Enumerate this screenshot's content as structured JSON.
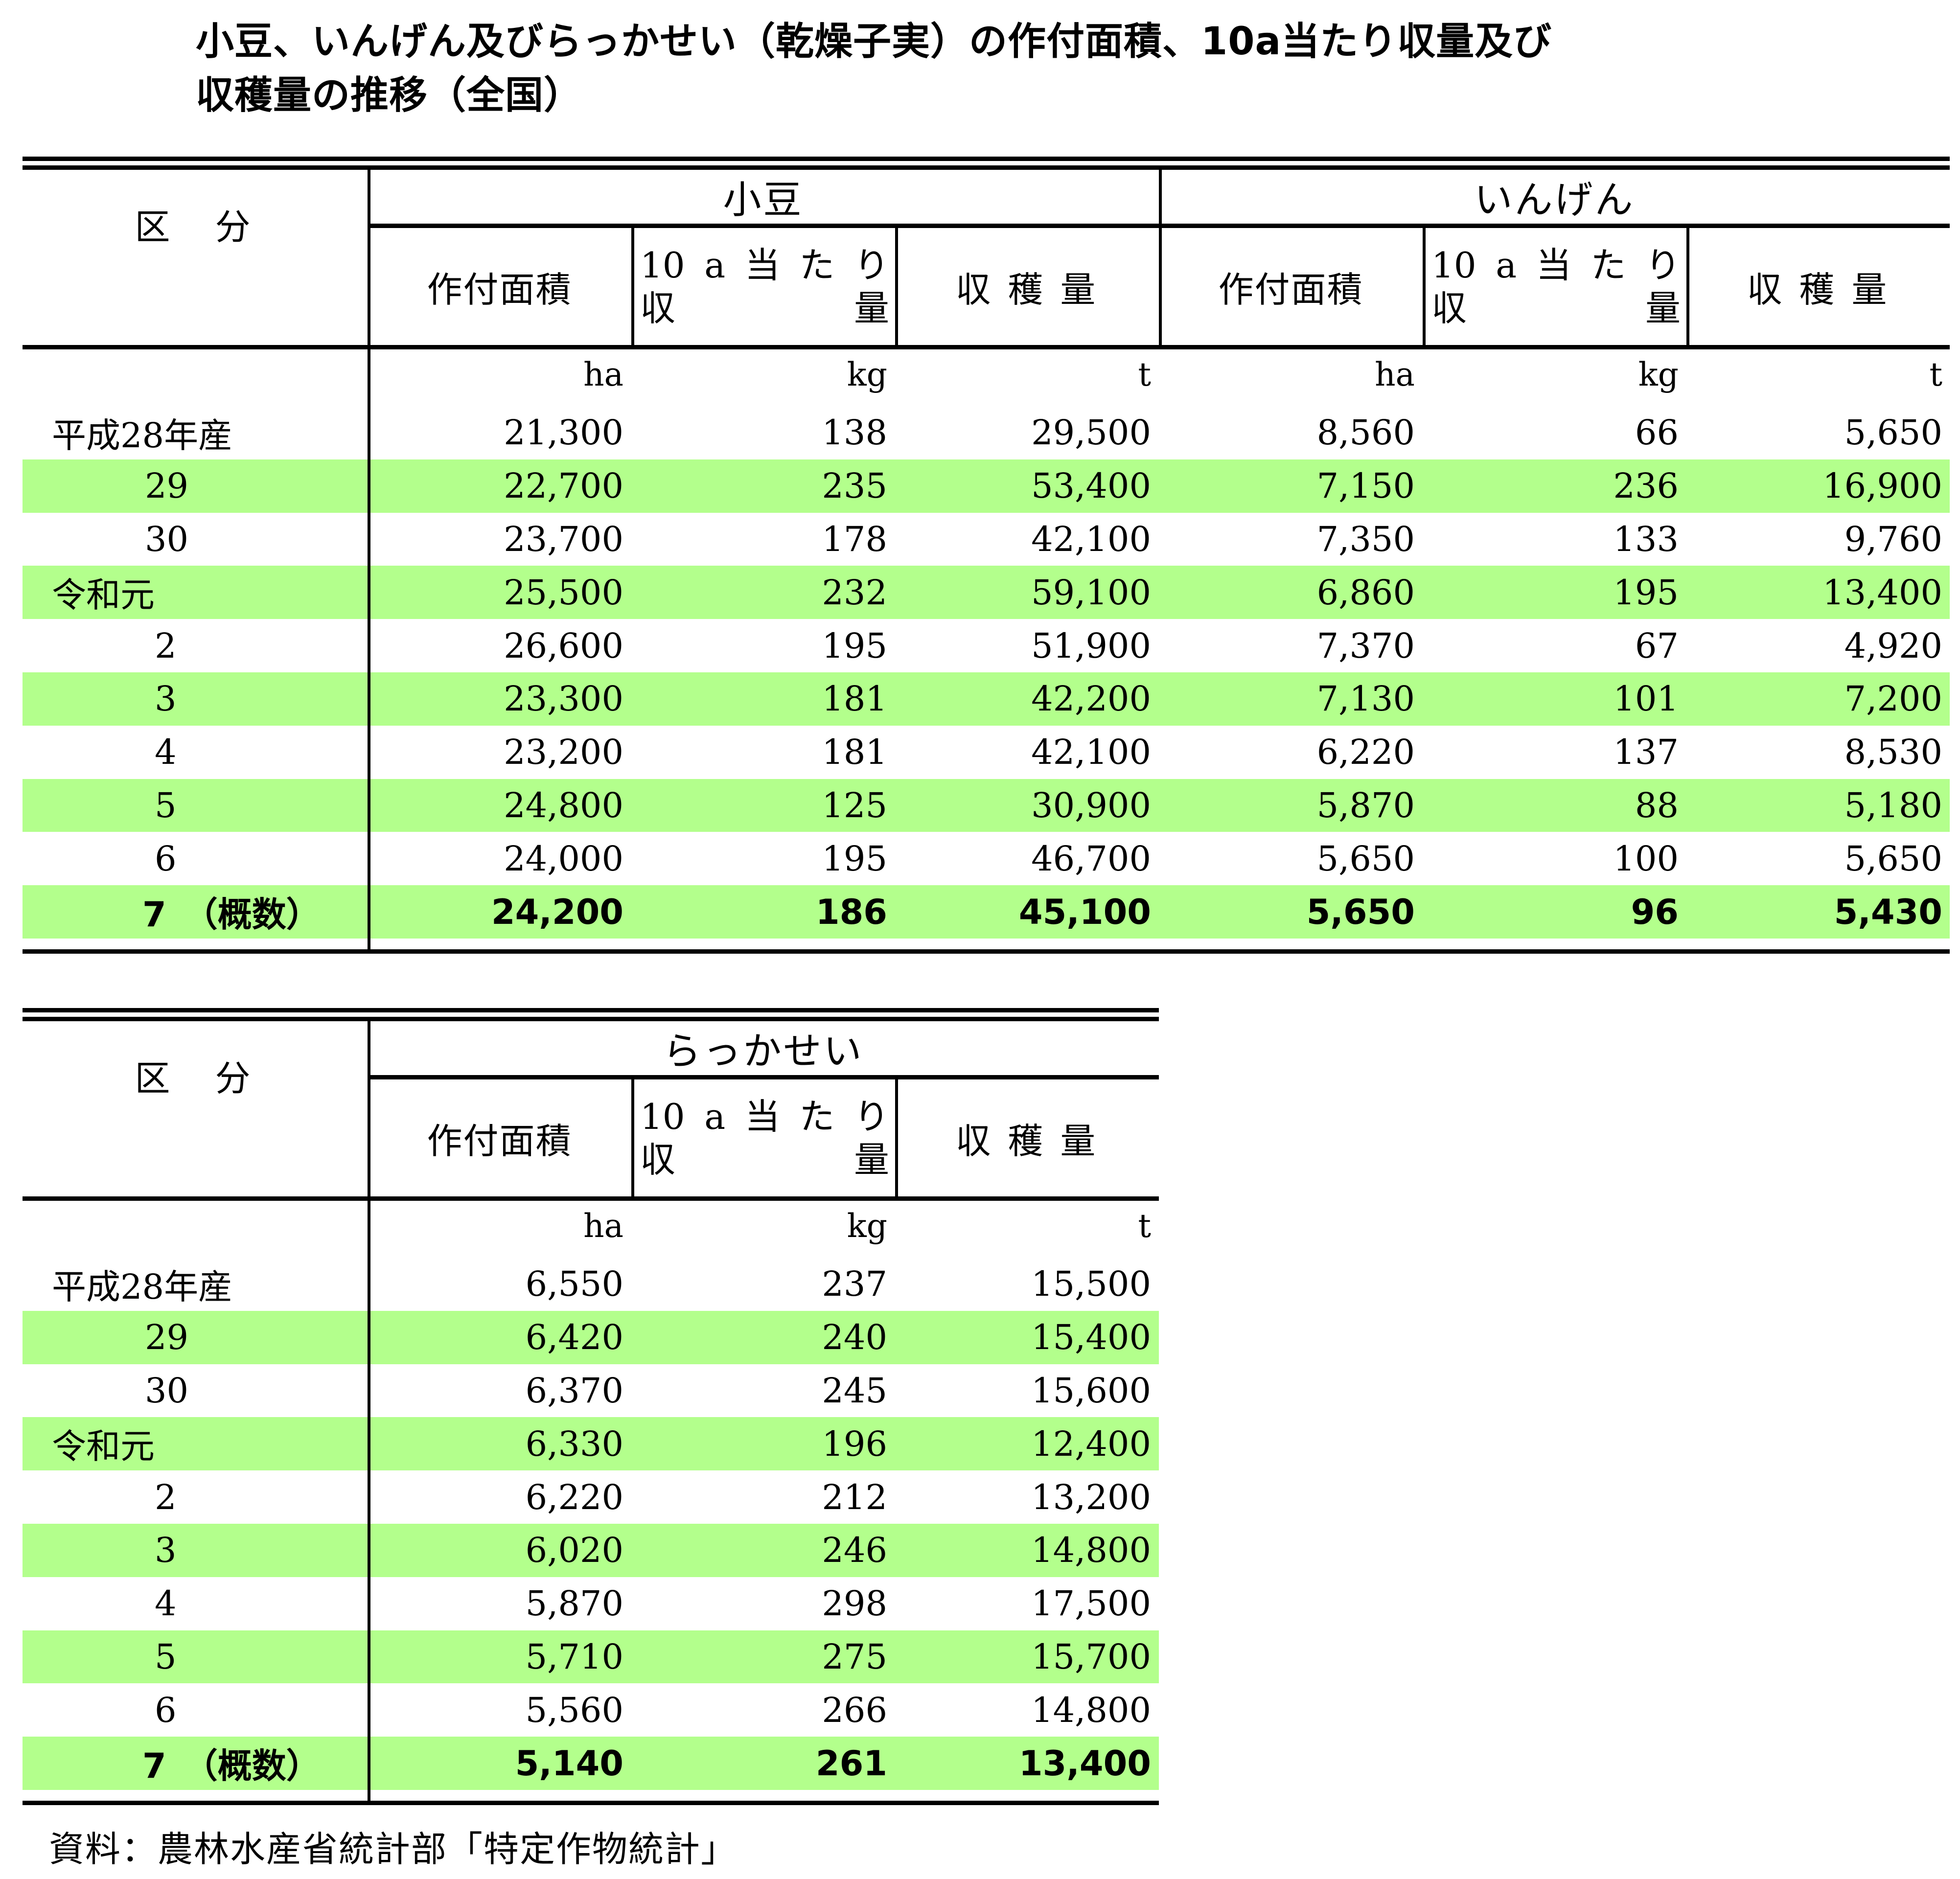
{
  "title": {
    "line1": "小豆、いんげん及びらっかせい（乾燥子実）の作付面積、10a当たり収量及び",
    "line2": "収穫量の推移（全国）"
  },
  "row_header": "区　分",
  "column_headers": {
    "area": "作付面積",
    "yield_line1": [
      "10",
      "a",
      "当",
      "た",
      "り"
    ],
    "yield_line2": [
      "収",
      "量"
    ],
    "harvest": "収 穫 量"
  },
  "units": {
    "area": "ha",
    "yield": "kg",
    "harvest": "t"
  },
  "row_labels": [
    "平成28年産",
    "29",
    "30",
    "令和元",
    "2",
    "3",
    "4",
    "5",
    "6",
    "7　（概数）"
  ],
  "table1": {
    "groups": [
      "小豆",
      "いんげん"
    ],
    "azuki": {
      "area": [
        "21,300",
        "22,700",
        "23,700",
        "25,500",
        "26,600",
        "23,300",
        "23,200",
        "24,800",
        "24,000",
        "24,200"
      ],
      "yield": [
        "138",
        "235",
        "178",
        "232",
        "195",
        "181",
        "181",
        "125",
        "195",
        "186"
      ],
      "harvest": [
        "29,500",
        "53,400",
        "42,100",
        "59,100",
        "51,900",
        "42,200",
        "42,100",
        "30,900",
        "46,700",
        "45,100"
      ]
    },
    "ingen": {
      "area": [
        "8,560",
        "7,150",
        "7,350",
        "6,860",
        "7,370",
        "7,130",
        "6,220",
        "5,870",
        "5,650",
        "5,650"
      ],
      "yield": [
        "66",
        "236",
        "133",
        "195",
        "67",
        "101",
        "137",
        "88",
        "100",
        "96"
      ],
      "harvest": [
        "5,650",
        "16,900",
        "9,760",
        "13,400",
        "4,920",
        "7,200",
        "8,530",
        "5,180",
        "5,650",
        "5,430"
      ]
    }
  },
  "table2": {
    "groups": [
      "らっかせい"
    ],
    "rakkasei": {
      "area": [
        "6,550",
        "6,420",
        "6,370",
        "6,330",
        "6,220",
        "6,020",
        "5,870",
        "5,710",
        "5,560",
        "5,140"
      ],
      "yield": [
        "237",
        "240",
        "245",
        "196",
        "212",
        "246",
        "298",
        "275",
        "266",
        "261"
      ],
      "harvest": [
        "15,500",
        "15,400",
        "15,600",
        "12,400",
        "13,200",
        "14,800",
        "17,500",
        "15,700",
        "14,800",
        "13,400"
      ]
    }
  },
  "footer": "資料：農林水産省統計部「特定作物統計」",
  "colors": {
    "row_highlight": "#B3FF8C",
    "rule": "#000000"
  }
}
